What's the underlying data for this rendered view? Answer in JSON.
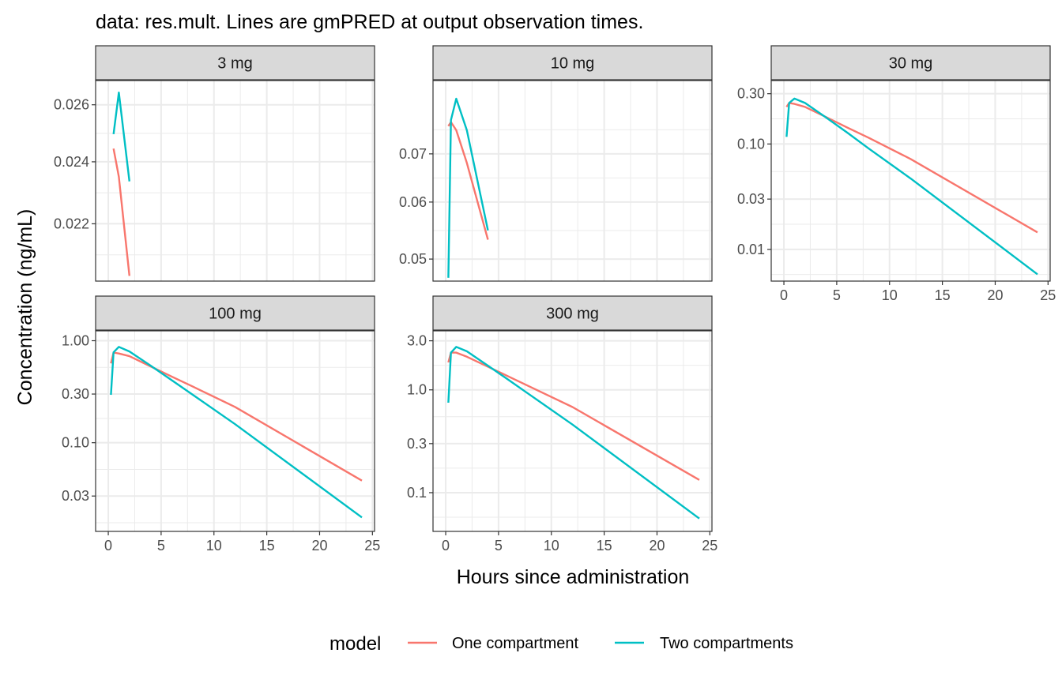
{
  "chart_data": {
    "type": "line",
    "title": "data: res.mult. Lines are gmPRED at output observation times.",
    "xlabel": "Hours since administration",
    "ylabel": "Concentration (ng/mL)",
    "legend": {
      "title": "model",
      "position": "bottom",
      "entries": [
        {
          "name": "One compartment",
          "color": "#F8766D"
        },
        {
          "name": "Two compartments",
          "color": "#00BFC4"
        }
      ]
    },
    "x_ticks": [
      0,
      5,
      10,
      15,
      20,
      25
    ],
    "xlim": [
      -1.2,
      25.2
    ],
    "grid": true,
    "panels": [
      {
        "strip": "3 mg",
        "y_scale": "log",
        "ylim": [
          0.0203,
          0.0269
        ],
        "y_ticks": [
          0.022,
          0.024,
          0.026
        ],
        "y_tick_labels": [
          "0.022",
          "0.024",
          "0.026"
        ],
        "series": [
          {
            "name": "One compartment",
            "x": [
              0.5,
              1,
              2
            ],
            "y": [
              0.02445,
              0.0235,
              0.02045
            ]
          },
          {
            "name": "Two compartments",
            "x": [
              0.5,
              1,
              2
            ],
            "y": [
              0.02495,
              0.02645,
              0.02335
            ]
          }
        ]
      },
      {
        "strip": "10 mg",
        "y_scale": "log",
        "ylim": [
          0.0466,
          0.0885
        ],
        "y_ticks": [
          0.05,
          0.06,
          0.07
        ],
        "y_tick_labels": [
          "0.05",
          "0.06",
          "0.07"
        ],
        "series": [
          {
            "name": "One compartment",
            "x": [
              0.25,
              0.5,
              1,
              2,
              4
            ],
            "y": [
              0.0765,
              0.0775,
              0.0755,
              0.068,
              0.0532
            ]
          },
          {
            "name": "Two compartments",
            "x": [
              0.25,
              0.5,
              1,
              2,
              4
            ],
            "y": [
              0.0471,
              0.078,
              0.0835,
              0.0755,
              0.0548
            ]
          }
        ]
      },
      {
        "strip": "30 mg",
        "y_scale": "log",
        "ylim": [
          0.005,
          0.4
        ],
        "y_ticks": [
          0.01,
          0.03,
          0.1,
          0.3
        ],
        "y_tick_labels": [
          "0.01",
          "0.03",
          "0.10",
          "0.30"
        ],
        "series": [
          {
            "name": "One compartment",
            "x": [
              0.25,
              0.5,
              1,
              2,
              4,
              6,
              8,
              12,
              24
            ],
            "y": [
              0.225,
              0.245,
              0.24,
              0.225,
              0.18,
              0.143,
              0.115,
              0.072,
              0.0145
            ]
          },
          {
            "name": "Two compartments",
            "x": [
              0.25,
              0.5,
              1,
              2,
              4,
              6,
              8,
              12,
              24
            ],
            "y": [
              0.117,
              0.245,
              0.27,
              0.245,
              0.178,
              0.128,
              0.091,
              0.047,
              0.0058
            ]
          }
        ]
      },
      {
        "strip": "100 mg",
        "y_scale": "log",
        "ylim": [
          0.0135,
          1.25
        ],
        "y_ticks": [
          0.03,
          0.1,
          0.3,
          1.0
        ],
        "y_tick_labels": [
          "0.03",
          "0.10",
          "0.30",
          "1.00"
        ],
        "series": [
          {
            "name": "One compartment",
            "x": [
              0.25,
              0.5,
              1,
              2,
              4,
              6,
              8,
              12,
              24
            ],
            "y": [
              0.6,
              0.765,
              0.75,
              0.705,
              0.56,
              0.445,
              0.355,
              0.224,
              0.0425
            ]
          },
          {
            "name": "Two compartments",
            "x": [
              0.25,
              0.5,
              1,
              2,
              4,
              6,
              8,
              12,
              24
            ],
            "y": [
              0.295,
              0.77,
              0.87,
              0.785,
              0.57,
              0.41,
              0.295,
              0.152,
              0.0185
            ]
          }
        ]
      },
      {
        "strip": "300 mg",
        "y_scale": "log",
        "ylim": [
          0.042,
          3.75
        ],
        "y_ticks": [
          0.1,
          0.3,
          1.0,
          3.0
        ],
        "y_tick_labels": [
          "0.1",
          "0.3",
          "1.0",
          "3.0"
        ],
        "series": [
          {
            "name": "One compartment",
            "x": [
              0.25,
              0.5,
              1,
              2,
              4,
              6,
              8,
              12,
              24
            ],
            "y": [
              1.85,
              2.3,
              2.3,
              2.1,
              1.68,
              1.34,
              1.07,
              0.68,
              0.133
            ]
          },
          {
            "name": "Two compartments",
            "x": [
              0.25,
              0.5,
              1,
              2,
              4,
              6,
              8,
              12,
              24
            ],
            "y": [
              0.75,
              2.3,
              2.62,
              2.37,
              1.72,
              1.24,
              0.89,
              0.46,
              0.056
            ]
          }
        ]
      }
    ]
  }
}
